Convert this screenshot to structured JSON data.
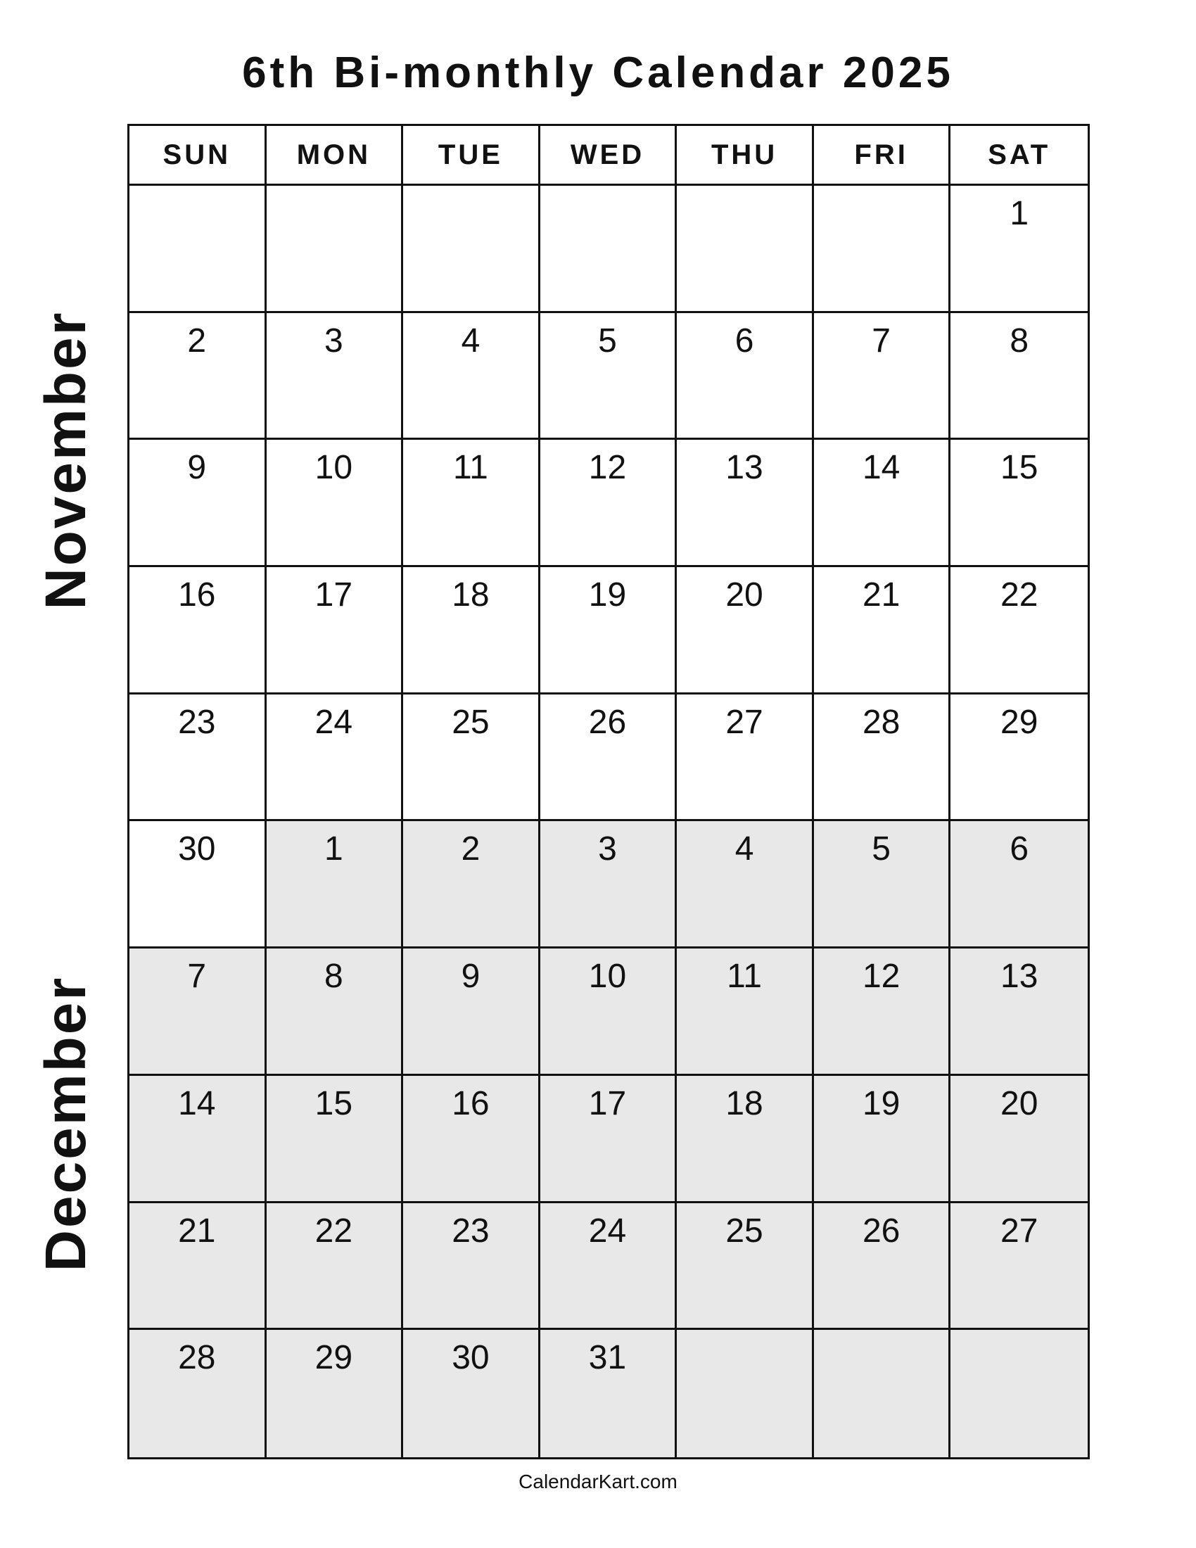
{
  "title": "6th Bi-monthly Calendar 2025",
  "weekdays": [
    "SUN",
    "MON",
    "TUE",
    "WED",
    "THU",
    "FRI",
    "SAT"
  ],
  "months": [
    {
      "name": "November",
      "shade_color": "#ffffff"
    },
    {
      "name": "December",
      "shade_color": "#e8e8e8"
    }
  ],
  "weeks": [
    [
      null,
      null,
      null,
      null,
      null,
      null,
      {
        "day": "1",
        "month": 0
      }
    ],
    [
      {
        "day": "2",
        "month": 0
      },
      {
        "day": "3",
        "month": 0
      },
      {
        "day": "4",
        "month": 0
      },
      {
        "day": "5",
        "month": 0
      },
      {
        "day": "6",
        "month": 0
      },
      {
        "day": "7",
        "month": 0
      },
      {
        "day": "8",
        "month": 0
      }
    ],
    [
      {
        "day": "9",
        "month": 0
      },
      {
        "day": "10",
        "month": 0
      },
      {
        "day": "11",
        "month": 0
      },
      {
        "day": "12",
        "month": 0
      },
      {
        "day": "13",
        "month": 0
      },
      {
        "day": "14",
        "month": 0
      },
      {
        "day": "15",
        "month": 0
      }
    ],
    [
      {
        "day": "16",
        "month": 0
      },
      {
        "day": "17",
        "month": 0
      },
      {
        "day": "18",
        "month": 0
      },
      {
        "day": "19",
        "month": 0
      },
      {
        "day": "20",
        "month": 0
      },
      {
        "day": "21",
        "month": 0
      },
      {
        "day": "22",
        "month": 0
      }
    ],
    [
      {
        "day": "23",
        "month": 0
      },
      {
        "day": "24",
        "month": 0
      },
      {
        "day": "25",
        "month": 0
      },
      {
        "day": "26",
        "month": 0
      },
      {
        "day": "27",
        "month": 0
      },
      {
        "day": "28",
        "month": 0
      },
      {
        "day": "29",
        "month": 0
      }
    ],
    [
      {
        "day": "30",
        "month": 0
      },
      {
        "day": "1",
        "month": 1
      },
      {
        "day": "2",
        "month": 1
      },
      {
        "day": "3",
        "month": 1
      },
      {
        "day": "4",
        "month": 1
      },
      {
        "day": "5",
        "month": 1
      },
      {
        "day": "6",
        "month": 1
      }
    ],
    [
      {
        "day": "7",
        "month": 1
      },
      {
        "day": "8",
        "month": 1
      },
      {
        "day": "9",
        "month": 1
      },
      {
        "day": "10",
        "month": 1
      },
      {
        "day": "11",
        "month": 1
      },
      {
        "day": "12",
        "month": 1
      },
      {
        "day": "13",
        "month": 1
      }
    ],
    [
      {
        "day": "14",
        "month": 1
      },
      {
        "day": "15",
        "month": 1
      },
      {
        "day": "16",
        "month": 1
      },
      {
        "day": "17",
        "month": 1
      },
      {
        "day": "18",
        "month": 1
      },
      {
        "day": "19",
        "month": 1
      },
      {
        "day": "20",
        "month": 1
      }
    ],
    [
      {
        "day": "21",
        "month": 1
      },
      {
        "day": "22",
        "month": 1
      },
      {
        "day": "23",
        "month": 1
      },
      {
        "day": "24",
        "month": 1
      },
      {
        "day": "25",
        "month": 1
      },
      {
        "day": "26",
        "month": 1
      },
      {
        "day": "27",
        "month": 1
      }
    ],
    [
      {
        "day": "28",
        "month": 1
      },
      {
        "day": "29",
        "month": 1
      },
      {
        "day": "30",
        "month": 1
      },
      {
        "day": "31",
        "month": 1
      },
      {
        "empty": true,
        "month": 1
      },
      {
        "empty": true,
        "month": 1
      },
      {
        "empty": true,
        "month": 1
      }
    ]
  ],
  "footer": "CalendarKart.com"
}
